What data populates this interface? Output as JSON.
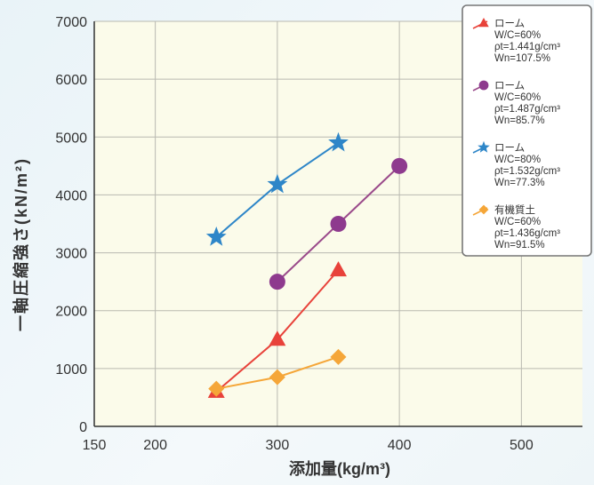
{
  "chart_data": {
    "type": "line",
    "xlabel": "添加量(kg/m³)",
    "ylabel": "一軸圧縮強さ(kN/m²)",
    "xlim": [
      150,
      550
    ],
    "ylim": [
      0,
      7000
    ],
    "x_ticks": [
      150,
      200,
      300,
      400,
      500
    ],
    "y_ticks": [
      0,
      1000,
      2000,
      3000,
      4000,
      5000,
      6000,
      7000
    ],
    "grid": true,
    "legend_position": "top-right",
    "colors": {
      "plot_background": "#fbfbea",
      "grid": "#b9b9b0",
      "axis": "#333333"
    },
    "series": [
      {
        "name": "ローム",
        "legend_lines": [
          "ローム",
          "W/C=60%",
          "ρt=1.441g/cm³",
          "Wn=107.5%"
        ],
        "marker": "triangle",
        "color": "#e8423a",
        "x": [
          250,
          300,
          350
        ],
        "y": [
          600,
          1500,
          2700
        ]
      },
      {
        "name": "ローム",
        "legend_lines": [
          "ローム",
          "W/C=60%",
          "ρt=1.487g/cm³",
          "Wn=85.7%"
        ],
        "marker": "circle",
        "color": "#8e3a8e",
        "line_color": "#9a4a8a",
        "x": [
          300,
          350,
          400
        ],
        "y": [
          2500,
          3500,
          4500
        ]
      },
      {
        "name": "ローム",
        "legend_lines": [
          "ローム",
          "W/C=80%",
          "ρt=1.532g/cm³",
          "Wn=77.3%"
        ],
        "marker": "star",
        "color": "#2e86c8",
        "x": [
          250,
          300,
          350
        ],
        "y": [
          3270,
          4180,
          4900
        ]
      },
      {
        "name": "有機質土",
        "legend_lines": [
          "有機質土",
          "W/C=60%",
          "ρt=1.436g/cm³",
          "Wn=91.5%"
        ],
        "marker": "diamond",
        "color": "#f5a638",
        "x": [
          250,
          300,
          350
        ],
        "y": [
          650,
          850,
          1200
        ]
      }
    ]
  }
}
